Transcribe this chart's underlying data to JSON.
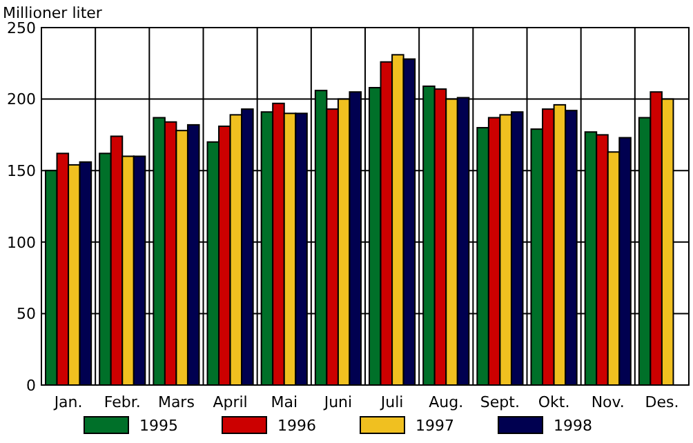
{
  "chart_data": {
    "type": "bar",
    "ylabel": "Millioner liter",
    "categories": [
      "Jan.",
      "Febr.",
      "Mars",
      "April",
      "Mai",
      "Juni",
      "Juli",
      "Aug.",
      "Sept.",
      "Okt.",
      "Nov.",
      "Des."
    ],
    "series": [
      {
        "name": "1995",
        "color": "#007029",
        "values": [
          150,
          162,
          187,
          170,
          191,
          206,
          208,
          209,
          180,
          179,
          177,
          187
        ]
      },
      {
        "name": "1996",
        "color": "#cc0000",
        "values": [
          162,
          174,
          184,
          181,
          197,
          193,
          226,
          207,
          187,
          193,
          175,
          205
        ]
      },
      {
        "name": "1997",
        "color": "#f0c020",
        "values": [
          154,
          160,
          178,
          189,
          190,
          200,
          231,
          200,
          189,
          196,
          163,
          200
        ]
      },
      {
        "name": "1998",
        "color": "#000050",
        "values": [
          156,
          160,
          182,
          193,
          190,
          205,
          228,
          201,
          191,
          192,
          173,
          null
        ]
      }
    ],
    "ylim": [
      0,
      250
    ],
    "yticks": [
      0,
      50,
      100,
      150,
      200,
      250
    ],
    "grid": true,
    "legend": "bottom"
  }
}
